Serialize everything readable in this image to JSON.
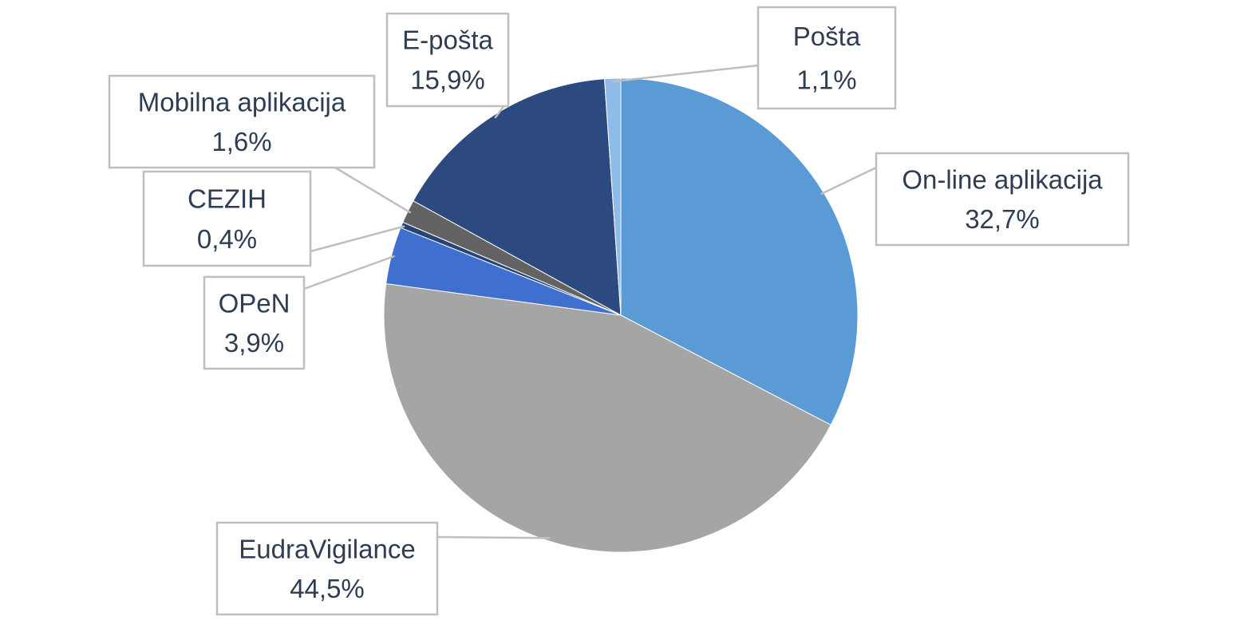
{
  "chart_data": {
    "type": "pie",
    "categories": [
      "On-line aplikacija",
      "EudraVigilance",
      "OPeN",
      "CEZIH",
      "Mobilna aplikacija",
      "E-pošta",
      "Pošta"
    ],
    "values": [
      32.7,
      44.5,
      3.9,
      0.4,
      1.6,
      15.9,
      1.1
    ],
    "value_labels": [
      "32,7%",
      "44,5%",
      "3,9%",
      "0,4%",
      "1,6%",
      "15,9%",
      "1,1%"
    ],
    "colors": [
      "#5b9bd5",
      "#a5a5a5",
      "#3f6fcf",
      "#264478",
      "#636363",
      "#2c4a80",
      "#8fbbe8"
    ]
  }
}
